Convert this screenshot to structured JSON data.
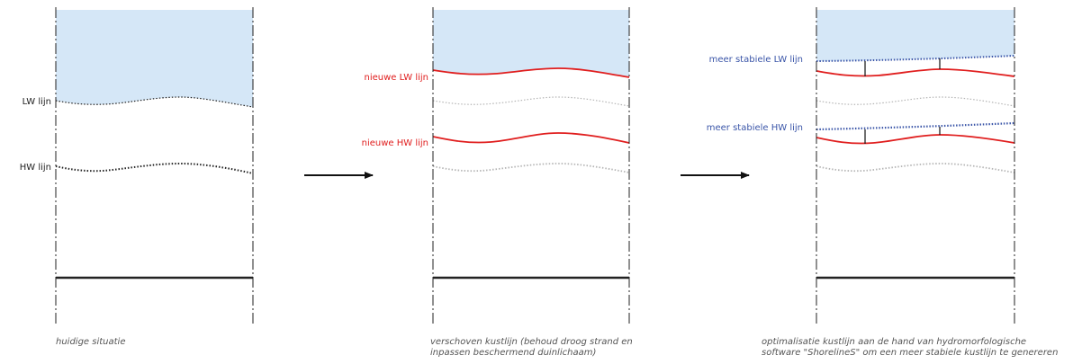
{
  "colors": {
    "water": "#d5e7f7",
    "original_line": "#222222",
    "ghost_line": "#b5b5b5",
    "new_line": "#e01e1e",
    "stable_line": "#3a55a8",
    "border": "#222222"
  },
  "panels": [
    {
      "id": "huidige",
      "labels": {
        "lw": "LW lijn",
        "hw": "HW lijn"
      },
      "caption": [
        "huidige situatie"
      ]
    },
    {
      "id": "verschoven",
      "labels": {
        "lw": "nieuwe LW lijn",
        "hw": "nieuwe HW lijn"
      },
      "caption": [
        "verschoven kustlijn (behoud droog strand en",
        "inpassen beschermend duinlichaam)"
      ]
    },
    {
      "id": "optimalisatie",
      "labels": {
        "lw": "meer stabiele LW lijn",
        "hw": "meer stabiele HW lijn"
      },
      "caption": [
        "optimalisatie kustlijn aan de hand van hydromorfologische",
        "software \"ShorelineS\" om een meer stabiele kustlijn te genereren"
      ]
    }
  ],
  "arrows": [
    "arrow-1",
    "arrow-2"
  ]
}
